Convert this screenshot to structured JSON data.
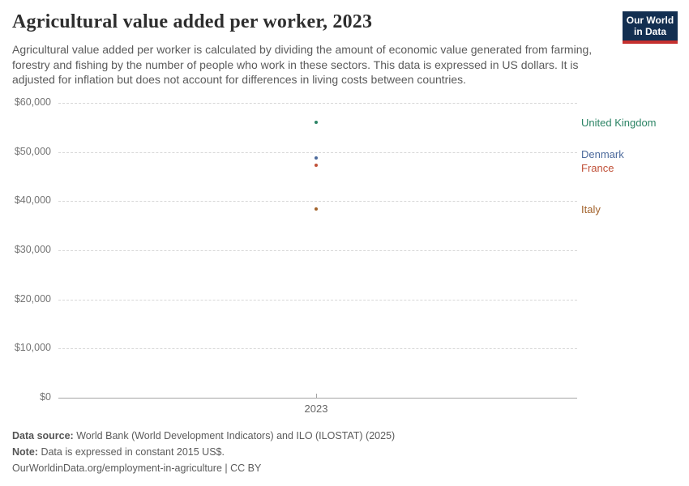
{
  "header": {
    "title": "Agricultural value added per worker, 2023",
    "subtitle": "Agricultural value added per worker is calculated by dividing the amount of economic value generated from farming, forestry and fishing by the number of people who work in these sectors. This data is expressed in US dollars. It is adjusted for inflation but does not account for differences in living costs between countries.",
    "logo_line1": "Our World",
    "logo_line2": "in Data",
    "logo_bg_color": "#132F51",
    "logo_accent_color": "#C5302F"
  },
  "chart_data": {
    "type": "scatter",
    "title": "Agricultural value added per worker, 2023",
    "x": [
      2023
    ],
    "x_tick_label": "2023",
    "xlabel": "",
    "ylabel": "",
    "ylim": [
      0,
      60000
    ],
    "ytick_step": 10000,
    "ytick_prefix": "$",
    "grid": "horizontal-dashed",
    "legend_position": "right-edge-labels",
    "series": [
      {
        "name": "United Kingdom",
        "year": 2023,
        "value": 56000,
        "color": "#2C8465"
      },
      {
        "name": "Denmark",
        "year": 2023,
        "value": 48800,
        "color": "#4C6A9C"
      },
      {
        "name": "France",
        "year": 2023,
        "value": 47300,
        "color": "#C05038"
      },
      {
        "name": "Italy",
        "year": 2023,
        "value": 38400,
        "color": "#A2622B"
      }
    ]
  },
  "footer": {
    "source_label": "Data source:",
    "source_text": "World Bank (World Development Indicators) and ILO (ILOSTAT) (2025)",
    "note_label": "Note:",
    "note_text": "Data is expressed in constant 2015 US$.",
    "url_line": "OurWorldinData.org/employment-in-agriculture | CC BY"
  }
}
